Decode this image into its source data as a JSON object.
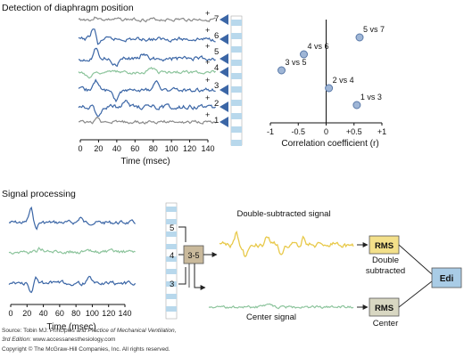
{
  "top_section": {
    "title": "Detection of diaphragm position",
    "electrode_labels": [
      "7",
      "6",
      "5",
      "4",
      "3",
      "2",
      "1"
    ],
    "polarity": {
      "plus": "+",
      "minus": "−"
    },
    "time_axis": {
      "ticks": [
        "0",
        "20",
        "40",
        "60",
        "80",
        "100",
        "120",
        "140"
      ],
      "label": "Time (msec)"
    },
    "correlation_chart": {
      "x_ticks": [
        "-1",
        "-0.5",
        "0",
        "+0.5",
        "+1"
      ],
      "x_label": "Correlation coefficient (r)",
      "points": [
        {
          "label": "5 vs 7",
          "r": 0.6
        },
        {
          "label": "4 vs 6",
          "r": -0.4
        },
        {
          "label": "3 vs 5",
          "r": -0.8
        },
        {
          "label": "2 vs 4",
          "r": 0.05
        },
        {
          "label": "1 vs 3",
          "r": 0.55
        }
      ]
    }
  },
  "bottom_section": {
    "title": "Signal processing",
    "electrode_labels": [
      "5",
      "4",
      "3"
    ],
    "center_pair": "3-5",
    "time_axis": {
      "ticks": [
        "0",
        "20",
        "40",
        "60",
        "80",
        "100",
        "120",
        "140"
      ],
      "label": "Time (msec)"
    },
    "double_subtracted_label": "Double-subtracted signal",
    "center_signal_label": "Center signal",
    "rms_box_label": "RMS",
    "double_subtracted_caption": "Double\nsubtracted",
    "center_caption": "Center",
    "output_label": "Edi"
  },
  "footer": {
    "source_prefix": "Source: Tobin MJ: ",
    "source_title": "Principles and Practice of Mechanical Ventilation,",
    "edition_line": "3rd Edition: www.accessanesthesiology.com",
    "copyright_line": "Copyright © The McGraw-Hill Companies, Inc. All rights reserved."
  },
  "colors": {
    "blue": "#3b66a6",
    "green": "#8cc49c",
    "gray": "#8a8a8a",
    "yellow": "#e8c94a",
    "electrode": "#b8d8ec",
    "box_yellow": "#f3e08a",
    "box_khaki": "#d8d7c2",
    "box_blue": "#a9cce6",
    "point_fill": "#9fb6d6",
    "point_stroke": "#5a79a8"
  }
}
